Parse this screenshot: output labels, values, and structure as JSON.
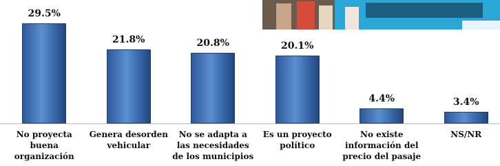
{
  "chart_data": {
    "type": "bar",
    "categories": [
      "No proyecta buena organización",
      "Genera desorden vehicular",
      "No se adapta a las necesidades de los municipios",
      "Es un proyecto político",
      "No existe información del precio del pasaje",
      "NS/NR"
    ],
    "values": [
      29.5,
      21.8,
      20.8,
      20.1,
      4.4,
      3.4
    ],
    "value_labels": [
      "29.5%",
      "21.8%",
      "20.8%",
      "20.1%",
      "4.4%",
      "3.4%"
    ],
    "color": "#3d6db0"
  }
}
